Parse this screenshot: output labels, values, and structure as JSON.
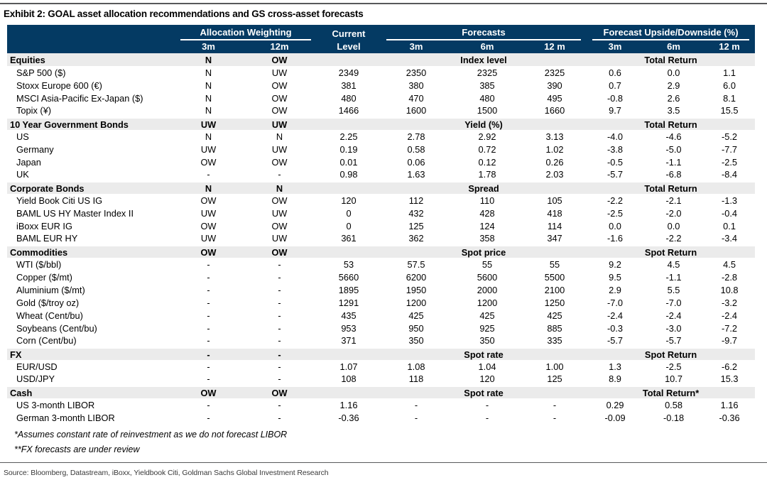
{
  "title": "Exhibit 2: GOAL asset allocation recommendations and GS cross-asset forecasts",
  "colors": {
    "header_bg": "#043A63",
    "section_bg": "#EBEBEB",
    "header_text": "#FFFFFF"
  },
  "header": {
    "allocation_group": "Allocation Weighting",
    "current_line1": "Current",
    "current_line2": "Level",
    "forecasts_group": "Forecasts",
    "upside_group": "Forecast Upside/Downside (%)",
    "sub_alloc_3m": "3m",
    "sub_alloc_12m": "12m",
    "sub_f_3m": "3m",
    "sub_f_6m": "6m",
    "sub_f_12m": "12 m",
    "sub_u_3m": "3m",
    "sub_u_6m": "6m",
    "sub_u_12m": "12 m"
  },
  "sections": [
    {
      "label": "Equities",
      "alloc_3m": "N",
      "alloc_12m": "OW",
      "forecast_label": "Index level",
      "return_label": "Total Return",
      "rows": [
        {
          "label": "S&P 500 ($)",
          "cells": [
            "N",
            "UW",
            "2349",
            "2350",
            "2325",
            "2325",
            "0.6",
            "0.0",
            "1.1"
          ]
        },
        {
          "label": "Stoxx Europe 600 (€)",
          "cells": [
            "N",
            "OW",
            "381",
            "380",
            "385",
            "390",
            "0.7",
            "2.9",
            "6.0"
          ]
        },
        {
          "label": "MSCI Asia-Pacific Ex-Japan ($)",
          "cells": [
            "N",
            "OW",
            "480",
            "470",
            "480",
            "495",
            "-0.8",
            "2.6",
            "8.1"
          ]
        },
        {
          "label": "Topix (¥)",
          "cells": [
            "N",
            "OW",
            "1466",
            "1600",
            "1500",
            "1660",
            "9.7",
            "3.5",
            "15.5"
          ]
        }
      ]
    },
    {
      "label": "10 Year Government Bonds",
      "alloc_3m": "UW",
      "alloc_12m": "UW",
      "forecast_label": "Yield (%)",
      "return_label": "Total Return",
      "rows": [
        {
          "label": "US",
          "cells": [
            "N",
            "N",
            "2.25",
            "2.78",
            "2.92",
            "3.13",
            "-4.0",
            "-4.6",
            "-5.2"
          ]
        },
        {
          "label": "Germany",
          "cells": [
            "UW",
            "UW",
            "0.19",
            "0.58",
            "0.72",
            "1.02",
            "-3.8",
            "-5.0",
            "-7.7"
          ]
        },
        {
          "label": "Japan",
          "cells": [
            "OW",
            "OW",
            "0.01",
            "0.06",
            "0.12",
            "0.26",
            "-0.5",
            "-1.1",
            "-2.5"
          ]
        },
        {
          "label": "UK",
          "cells": [
            "-",
            "-",
            "0.98",
            "1.63",
            "1.78",
            "2.03",
            "-5.7",
            "-6.8",
            "-8.4"
          ]
        }
      ]
    },
    {
      "label": "Corporate Bonds",
      "alloc_3m": "N",
      "alloc_12m": "N",
      "forecast_label": "Spread",
      "return_label": "Total Return",
      "rows": [
        {
          "label": "Yield Book Citi US IG",
          "cells": [
            "OW",
            "OW",
            "120",
            "112",
            "110",
            "105",
            "-2.2",
            "-2.1",
            "-1.3"
          ]
        },
        {
          "label": "BAML US HY Master Index II",
          "cells": [
            "UW",
            "UW",
            "0",
            "432",
            "428",
            "418",
            "-2.5",
            "-2.0",
            "-0.4"
          ]
        },
        {
          "label": "iBoxx EUR IG",
          "cells": [
            "OW",
            "OW",
            "0",
            "125",
            "124",
            "114",
            "0.0",
            "0.0",
            "0.1"
          ]
        },
        {
          "label": "BAML EUR HY",
          "cells": [
            "UW",
            "UW",
            "361",
            "362",
            "358",
            "347",
            "-1.6",
            "-2.2",
            "-3.4"
          ]
        }
      ]
    },
    {
      "label": "Commodities",
      "alloc_3m": "OW",
      "alloc_12m": "OW",
      "forecast_label": "Spot price",
      "return_label": "Spot Return",
      "rows": [
        {
          "label": "WTI  ($/bbl)",
          "cells": [
            "-",
            "-",
            "53",
            "57.5",
            "55",
            "55",
            "9.2",
            "4.5",
            "4.5"
          ]
        },
        {
          "label": "Copper ($/mt)",
          "cells": [
            "-",
            "-",
            "5660",
            "6200",
            "5600",
            "5500",
            "9.5",
            "-1.1",
            "-2.8"
          ]
        },
        {
          "label": "Aluminium ($/mt)",
          "cells": [
            "-",
            "-",
            "1895",
            "1950",
            "2000",
            "2100",
            "2.9",
            "5.5",
            "10.8"
          ]
        },
        {
          "label": "Gold ($/troy oz)",
          "cells": [
            "-",
            "-",
            "1291",
            "1200",
            "1200",
            "1250",
            "-7.0",
            "-7.0",
            "-3.2"
          ]
        },
        {
          "label": "Wheat (Cent/bu)",
          "cells": [
            "-",
            "-",
            "435",
            "425",
            "425",
            "425",
            "-2.4",
            "-2.4",
            "-2.4"
          ]
        },
        {
          "label": "Soybeans (Cent/bu)",
          "cells": [
            "-",
            "-",
            "953",
            "950",
            "925",
            "885",
            "-0.3",
            "-3.0",
            "-7.2"
          ]
        },
        {
          "label": "Corn (Cent/bu)",
          "cells": [
            "-",
            "-",
            "371",
            "350",
            "350",
            "335",
            "-5.7",
            "-5.7",
            "-9.7"
          ]
        }
      ]
    },
    {
      "label": "FX",
      "alloc_3m": "-",
      "alloc_12m": "-",
      "forecast_label": "Spot rate",
      "return_label": "Spot Return",
      "rows": [
        {
          "label": "EUR/USD",
          "cells": [
            "-",
            "-",
            "1.07",
            "1.08",
            "1.04",
            "1.00",
            "1.3",
            "-2.5",
            "-6.2"
          ]
        },
        {
          "label": "USD/JPY",
          "cells": [
            "-",
            "-",
            "108",
            "118",
            "120",
            "125",
            "8.9",
            "10.7",
            "15.3"
          ]
        }
      ]
    },
    {
      "label": "Cash",
      "alloc_3m": "OW",
      "alloc_12m": "OW",
      "forecast_label": "Spot rate",
      "return_label": "Total Return*",
      "rows": [
        {
          "label": "US 3-month LIBOR",
          "cells": [
            "-",
            "-",
            "1.16",
            "-",
            "-",
            "-",
            "0.29",
            "0.58",
            "1.16"
          ]
        },
        {
          "label": "German 3-month LIBOR",
          "cells": [
            "-",
            "-",
            "-0.36",
            "-",
            "-",
            "-",
            "-0.09",
            "-0.18",
            "-0.36"
          ]
        }
      ]
    }
  ],
  "footnotes": [
    "*Assumes constant rate of reinvestment as we do not forecast LIBOR",
    "**FX forecasts are under review"
  ],
  "source": "Source: Bloomberg, Datastream, iBoxx, Yieldbook Citi, Goldman Sachs Global Investment Research"
}
